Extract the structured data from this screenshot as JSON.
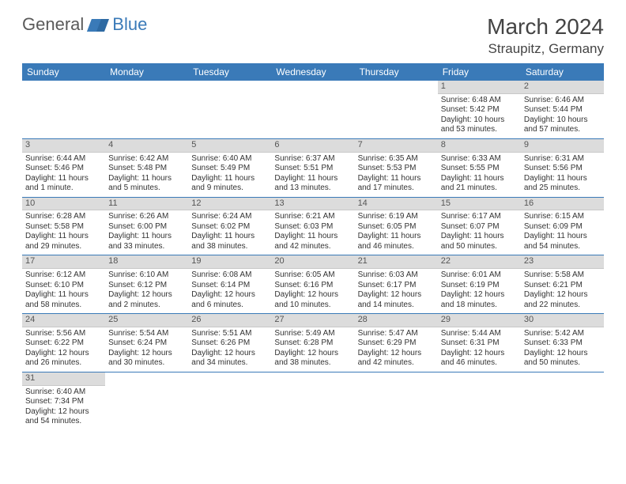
{
  "brand": {
    "general": "General",
    "blue": "Blue"
  },
  "title": "March 2024",
  "location": "Straupitz, Germany",
  "day_names": [
    "Sunday",
    "Monday",
    "Tuesday",
    "Wednesday",
    "Thursday",
    "Friday",
    "Saturday"
  ],
  "colors": {
    "header_bg": "#3a7ab8",
    "header_text": "#ffffff",
    "daynum_bg": "#dcdcdc",
    "row_divider": "#3a7ab8",
    "text": "#333333",
    "logo_gray": "#5a5a5a",
    "logo_blue": "#3a7ab8"
  },
  "weeks": [
    [
      {
        "n": "",
        "empty": true
      },
      {
        "n": "",
        "empty": true
      },
      {
        "n": "",
        "empty": true
      },
      {
        "n": "",
        "empty": true
      },
      {
        "n": "",
        "empty": true
      },
      {
        "n": "1",
        "sunrise": "Sunrise: 6:48 AM",
        "sunset": "Sunset: 5:42 PM",
        "daylight": "Daylight: 10 hours and 53 minutes."
      },
      {
        "n": "2",
        "sunrise": "Sunrise: 6:46 AM",
        "sunset": "Sunset: 5:44 PM",
        "daylight": "Daylight: 10 hours and 57 minutes."
      }
    ],
    [
      {
        "n": "3",
        "sunrise": "Sunrise: 6:44 AM",
        "sunset": "Sunset: 5:46 PM",
        "daylight": "Daylight: 11 hours and 1 minute."
      },
      {
        "n": "4",
        "sunrise": "Sunrise: 6:42 AM",
        "sunset": "Sunset: 5:48 PM",
        "daylight": "Daylight: 11 hours and 5 minutes."
      },
      {
        "n": "5",
        "sunrise": "Sunrise: 6:40 AM",
        "sunset": "Sunset: 5:49 PM",
        "daylight": "Daylight: 11 hours and 9 minutes."
      },
      {
        "n": "6",
        "sunrise": "Sunrise: 6:37 AM",
        "sunset": "Sunset: 5:51 PM",
        "daylight": "Daylight: 11 hours and 13 minutes."
      },
      {
        "n": "7",
        "sunrise": "Sunrise: 6:35 AM",
        "sunset": "Sunset: 5:53 PM",
        "daylight": "Daylight: 11 hours and 17 minutes."
      },
      {
        "n": "8",
        "sunrise": "Sunrise: 6:33 AM",
        "sunset": "Sunset: 5:55 PM",
        "daylight": "Daylight: 11 hours and 21 minutes."
      },
      {
        "n": "9",
        "sunrise": "Sunrise: 6:31 AM",
        "sunset": "Sunset: 5:56 PM",
        "daylight": "Daylight: 11 hours and 25 minutes."
      }
    ],
    [
      {
        "n": "10",
        "sunrise": "Sunrise: 6:28 AM",
        "sunset": "Sunset: 5:58 PM",
        "daylight": "Daylight: 11 hours and 29 minutes."
      },
      {
        "n": "11",
        "sunrise": "Sunrise: 6:26 AM",
        "sunset": "Sunset: 6:00 PM",
        "daylight": "Daylight: 11 hours and 33 minutes."
      },
      {
        "n": "12",
        "sunrise": "Sunrise: 6:24 AM",
        "sunset": "Sunset: 6:02 PM",
        "daylight": "Daylight: 11 hours and 38 minutes."
      },
      {
        "n": "13",
        "sunrise": "Sunrise: 6:21 AM",
        "sunset": "Sunset: 6:03 PM",
        "daylight": "Daylight: 11 hours and 42 minutes."
      },
      {
        "n": "14",
        "sunrise": "Sunrise: 6:19 AM",
        "sunset": "Sunset: 6:05 PM",
        "daylight": "Daylight: 11 hours and 46 minutes."
      },
      {
        "n": "15",
        "sunrise": "Sunrise: 6:17 AM",
        "sunset": "Sunset: 6:07 PM",
        "daylight": "Daylight: 11 hours and 50 minutes."
      },
      {
        "n": "16",
        "sunrise": "Sunrise: 6:15 AM",
        "sunset": "Sunset: 6:09 PM",
        "daylight": "Daylight: 11 hours and 54 minutes."
      }
    ],
    [
      {
        "n": "17",
        "sunrise": "Sunrise: 6:12 AM",
        "sunset": "Sunset: 6:10 PM",
        "daylight": "Daylight: 11 hours and 58 minutes."
      },
      {
        "n": "18",
        "sunrise": "Sunrise: 6:10 AM",
        "sunset": "Sunset: 6:12 PM",
        "daylight": "Daylight: 12 hours and 2 minutes."
      },
      {
        "n": "19",
        "sunrise": "Sunrise: 6:08 AM",
        "sunset": "Sunset: 6:14 PM",
        "daylight": "Daylight: 12 hours and 6 minutes."
      },
      {
        "n": "20",
        "sunrise": "Sunrise: 6:05 AM",
        "sunset": "Sunset: 6:16 PM",
        "daylight": "Daylight: 12 hours and 10 minutes."
      },
      {
        "n": "21",
        "sunrise": "Sunrise: 6:03 AM",
        "sunset": "Sunset: 6:17 PM",
        "daylight": "Daylight: 12 hours and 14 minutes."
      },
      {
        "n": "22",
        "sunrise": "Sunrise: 6:01 AM",
        "sunset": "Sunset: 6:19 PM",
        "daylight": "Daylight: 12 hours and 18 minutes."
      },
      {
        "n": "23",
        "sunrise": "Sunrise: 5:58 AM",
        "sunset": "Sunset: 6:21 PM",
        "daylight": "Daylight: 12 hours and 22 minutes."
      }
    ],
    [
      {
        "n": "24",
        "sunrise": "Sunrise: 5:56 AM",
        "sunset": "Sunset: 6:22 PM",
        "daylight": "Daylight: 12 hours and 26 minutes."
      },
      {
        "n": "25",
        "sunrise": "Sunrise: 5:54 AM",
        "sunset": "Sunset: 6:24 PM",
        "daylight": "Daylight: 12 hours and 30 minutes."
      },
      {
        "n": "26",
        "sunrise": "Sunrise: 5:51 AM",
        "sunset": "Sunset: 6:26 PM",
        "daylight": "Daylight: 12 hours and 34 minutes."
      },
      {
        "n": "27",
        "sunrise": "Sunrise: 5:49 AM",
        "sunset": "Sunset: 6:28 PM",
        "daylight": "Daylight: 12 hours and 38 minutes."
      },
      {
        "n": "28",
        "sunrise": "Sunrise: 5:47 AM",
        "sunset": "Sunset: 6:29 PM",
        "daylight": "Daylight: 12 hours and 42 minutes."
      },
      {
        "n": "29",
        "sunrise": "Sunrise: 5:44 AM",
        "sunset": "Sunset: 6:31 PM",
        "daylight": "Daylight: 12 hours and 46 minutes."
      },
      {
        "n": "30",
        "sunrise": "Sunrise: 5:42 AM",
        "sunset": "Sunset: 6:33 PM",
        "daylight": "Daylight: 12 hours and 50 minutes."
      }
    ],
    [
      {
        "n": "31",
        "sunrise": "Sunrise: 6:40 AM",
        "sunset": "Sunset: 7:34 PM",
        "daylight": "Daylight: 12 hours and 54 minutes."
      },
      {
        "n": "",
        "empty": true
      },
      {
        "n": "",
        "empty": true
      },
      {
        "n": "",
        "empty": true
      },
      {
        "n": "",
        "empty": true
      },
      {
        "n": "",
        "empty": true
      },
      {
        "n": "",
        "empty": true
      }
    ]
  ]
}
